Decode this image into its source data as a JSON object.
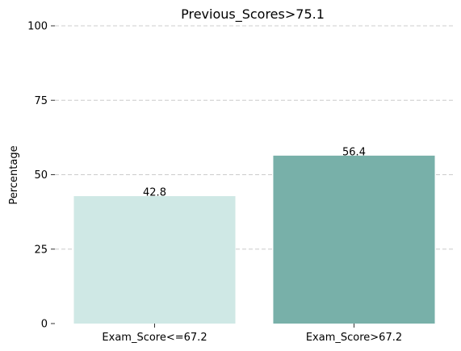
{
  "chart_data": {
    "type": "bar",
    "title": "Previous_Scores>75.1",
    "xlabel": "",
    "ylabel": "Percentage",
    "categories": [
      "Exam_Score<=67.2",
      "Exam_Score>67.2"
    ],
    "values": [
      42.8,
      56.4
    ],
    "data_labels": [
      "42.8",
      "56.4"
    ],
    "colors": [
      "#cfe8e5",
      "#78b0a9"
    ],
    "ylim": [
      0,
      100
    ],
    "yticks": [
      0,
      25,
      50,
      75,
      100
    ],
    "ytick_labels": [
      "0",
      "25",
      "50",
      "75",
      "100"
    ],
    "grid": true,
    "legend": false
  }
}
